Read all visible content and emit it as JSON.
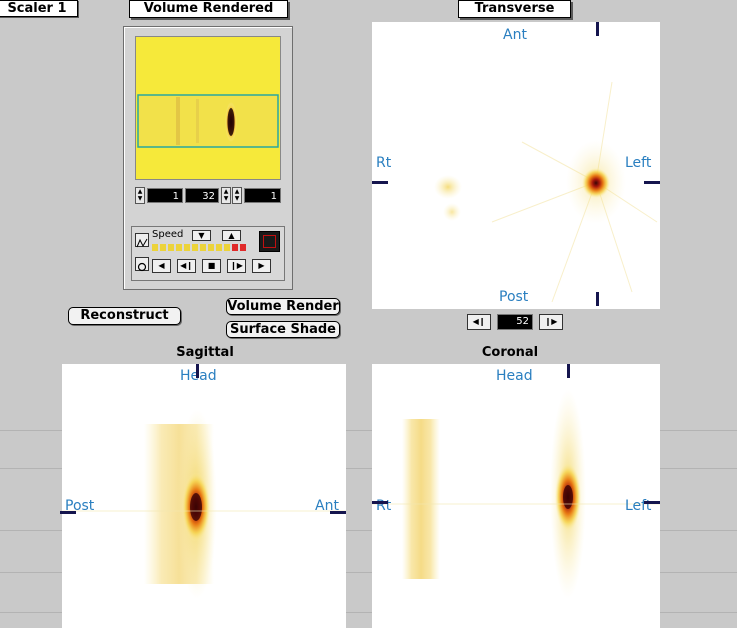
{
  "window": {
    "scaler_tab_label": "Scaler 1",
    "volume_rendered_label": "Volume Rendered",
    "transverse_label": "Transverse",
    "sagittal_label": "Sagittal",
    "coronal_label": "Coronal"
  },
  "render_panel": {
    "fields": [
      "1",
      "32",
      "1"
    ],
    "speed_label": "Speed",
    "cine_controls": [
      "◀",
      "◀❙",
      "■",
      "❙▶",
      "▶"
    ]
  },
  "buttons": {
    "reconstruct": "Reconstruct",
    "volume_render": "Volume Render",
    "surface_shade": "Surface Shade"
  },
  "transverse": {
    "top": "Ant",
    "bottom": "Post",
    "left": "Rt",
    "right": "Left",
    "slice_value": "52"
  },
  "sagittal": {
    "top": "Head",
    "left": "Post",
    "right": "Ant"
  },
  "coronal": {
    "top": "Head",
    "left": "Rt",
    "right": "Left"
  },
  "colors": {
    "label_blue": "#2a7fc0",
    "tick_navy": "#15154e",
    "hot_core": "#5a0808",
    "warm_yellow": "#f6e93a"
  }
}
